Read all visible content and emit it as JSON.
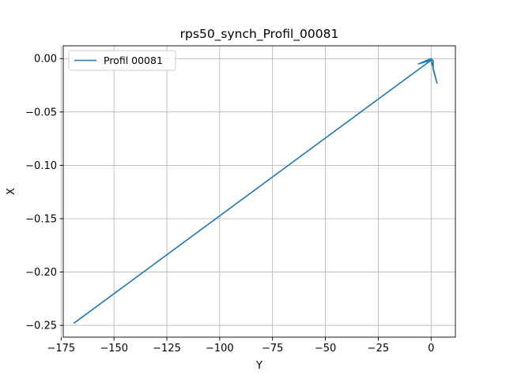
{
  "chart_data": {
    "type": "line",
    "title": "rps50_synch_Profil_00081",
    "xlabel": "Y",
    "ylabel": "X",
    "xlim": [
      -174,
      11.5
    ],
    "ylim": [
      -0.261,
      0.012
    ],
    "xticks": [
      -175,
      -150,
      -125,
      -100,
      -75,
      -50,
      -25,
      0
    ],
    "xtick_labels": [
      "−175",
      "−150",
      "−125",
      "−100",
      "−75",
      "−50",
      "−25",
      "0"
    ],
    "yticks": [
      0.0,
      -0.05,
      -0.1,
      -0.15,
      -0.2,
      -0.25
    ],
    "ytick_labels": [
      "0.00",
      "−0.05",
      "−0.10",
      "−0.15",
      "−0.20",
      "−0.25"
    ],
    "grid": true,
    "legend_position": "upper-left",
    "series": [
      {
        "name": "Profil 00081",
        "color": "#1f77b4",
        "x": [
          -169,
          0,
          -6,
          0,
          1,
          1,
          2.8,
          0,
          -169
        ],
        "y": [
          -0.248,
          -0.0015,
          -0.005,
          0.0,
          -0.002,
          -0.01,
          -0.023,
          -0.0015,
          -0.248
        ]
      }
    ]
  }
}
